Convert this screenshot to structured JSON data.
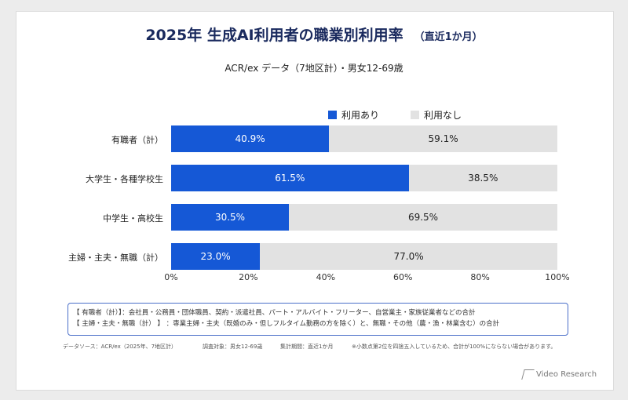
{
  "title": {
    "main": "2025年 生成AI利用者の職業別利用率",
    "sub": "（直近1か月）"
  },
  "subtitle": "ACR/ex データ（7地区計）・男女12-69歳",
  "colors": {
    "used": "#1558d6",
    "unused": "#e2e2e2"
  },
  "chart_data": {
    "type": "bar",
    "orientation": "horizontal-stacked-100",
    "categories": [
      "有職者（計）",
      "大学生・各種学校生",
      "中学生・高校生",
      "主婦・主夫・無職（計）"
    ],
    "series": [
      {
        "name": "利用あり",
        "values": [
          40.9,
          61.5,
          30.5,
          23.0
        ],
        "labels": [
          "40.9%",
          "61.5%",
          "30.5%",
          "23.0%"
        ]
      },
      {
        "name": "利用なし",
        "values": [
          59.1,
          38.5,
          69.5,
          77.0
        ],
        "labels": [
          "59.1%",
          "38.5%",
          "69.5%",
          "77.0%"
        ]
      }
    ],
    "xticks": [
      "0%",
      "20%",
      "40%",
      "60%",
      "80%",
      "100%"
    ],
    "xlim": [
      0,
      100
    ],
    "legend": "top"
  },
  "notes": [
    "【 有職者（計）】：会社員・公務員・団体職員、契約・派遣社員、パート・アルバイト・フリーター、自営業主・家族従業者などの合計",
    "【 主婦・主夫・無職（計） 】 ：専業主婦・主夫（既婚のみ・但しフルタイム勤務の方を除く）と、無職・その他（農・漁・林業含む）の合計"
  ],
  "footer": {
    "source": "データソース：ACR/ex（2025年、7地区計）",
    "target": "調査対象：男女12-69歳",
    "period": "集計期間：直近1か月",
    "rounding": "※小数点第2位を四捨五入しているため、合計が100%にならない場合があります。"
  },
  "logo": "Video Research"
}
